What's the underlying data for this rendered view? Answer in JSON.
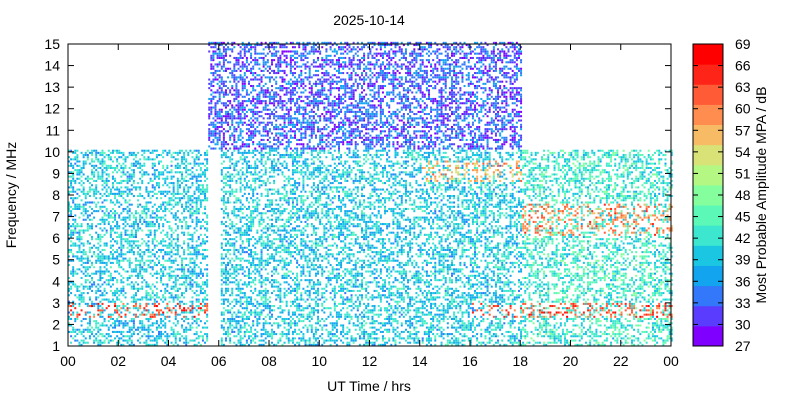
{
  "chart_data": {
    "type": "heatmap",
    "title": "2025-10-14",
    "xlabel": "UT Time / hrs",
    "ylabel": "Frequency / MHz",
    "colorbar_label": "Most Probable Amplitude MPA / dB",
    "xlim": [
      0,
      24
    ],
    "ylim": [
      1,
      15
    ],
    "x_ticks": [
      "00",
      "02",
      "04",
      "06",
      "08",
      "10",
      "12",
      "14",
      "16",
      "18",
      "20",
      "22",
      "00"
    ],
    "y_ticks": [
      "1",
      "2",
      "3",
      "4",
      "5",
      "6",
      "7",
      "8",
      "9",
      "10",
      "11",
      "12",
      "13",
      "14",
      "15"
    ],
    "colorbar": {
      "range": [
        27,
        69
      ],
      "ticks": [
        "27",
        "30",
        "33",
        "36",
        "39",
        "42",
        "45",
        "48",
        "51",
        "54",
        "57",
        "60",
        "63",
        "66",
        "69"
      ],
      "colors": [
        "#7f00ff",
        "#5a3cfe",
        "#3377fa",
        "#13a4f0",
        "#1ac6e2",
        "#3de6cf",
        "#5cf8b8",
        "#85fe9d",
        "#b4f883",
        "#d8e276",
        "#f8bb65",
        "#ff8d4f",
        "#ff5b36",
        "#ff2418",
        "#ff0000"
      ]
    },
    "grid": false,
    "series": [
      {
        "x_range": [
          0,
          5.5
        ],
        "y_range": [
          1,
          10
        ],
        "typical_value": 40
      },
      {
        "x_range": [
          5.5,
          18
        ],
        "y_range": [
          10,
          15
        ],
        "typical_value": 33
      },
      {
        "x_range": [
          6,
          18
        ],
        "y_range": [
          1,
          10
        ],
        "typical_value": 40
      },
      {
        "x_range": [
          18,
          24
        ],
        "y_range": [
          1,
          10
        ],
        "typical_value": 43
      },
      {
        "x_range": [
          0,
          6
        ],
        "y_range": [
          2.3,
          3.0
        ],
        "typical_value": 63
      },
      {
        "x_range": [
          16,
          24
        ],
        "y_range": [
          2.3,
          3.0
        ],
        "typical_value": 63
      },
      {
        "x_range": [
          18,
          24
        ],
        "y_range": [
          6.0,
          7.5
        ],
        "typical_value": 60
      },
      {
        "x_range": [
          14,
          18
        ],
        "y_range": [
          8.5,
          9.5
        ],
        "typical_value": 57
      }
    ]
  }
}
